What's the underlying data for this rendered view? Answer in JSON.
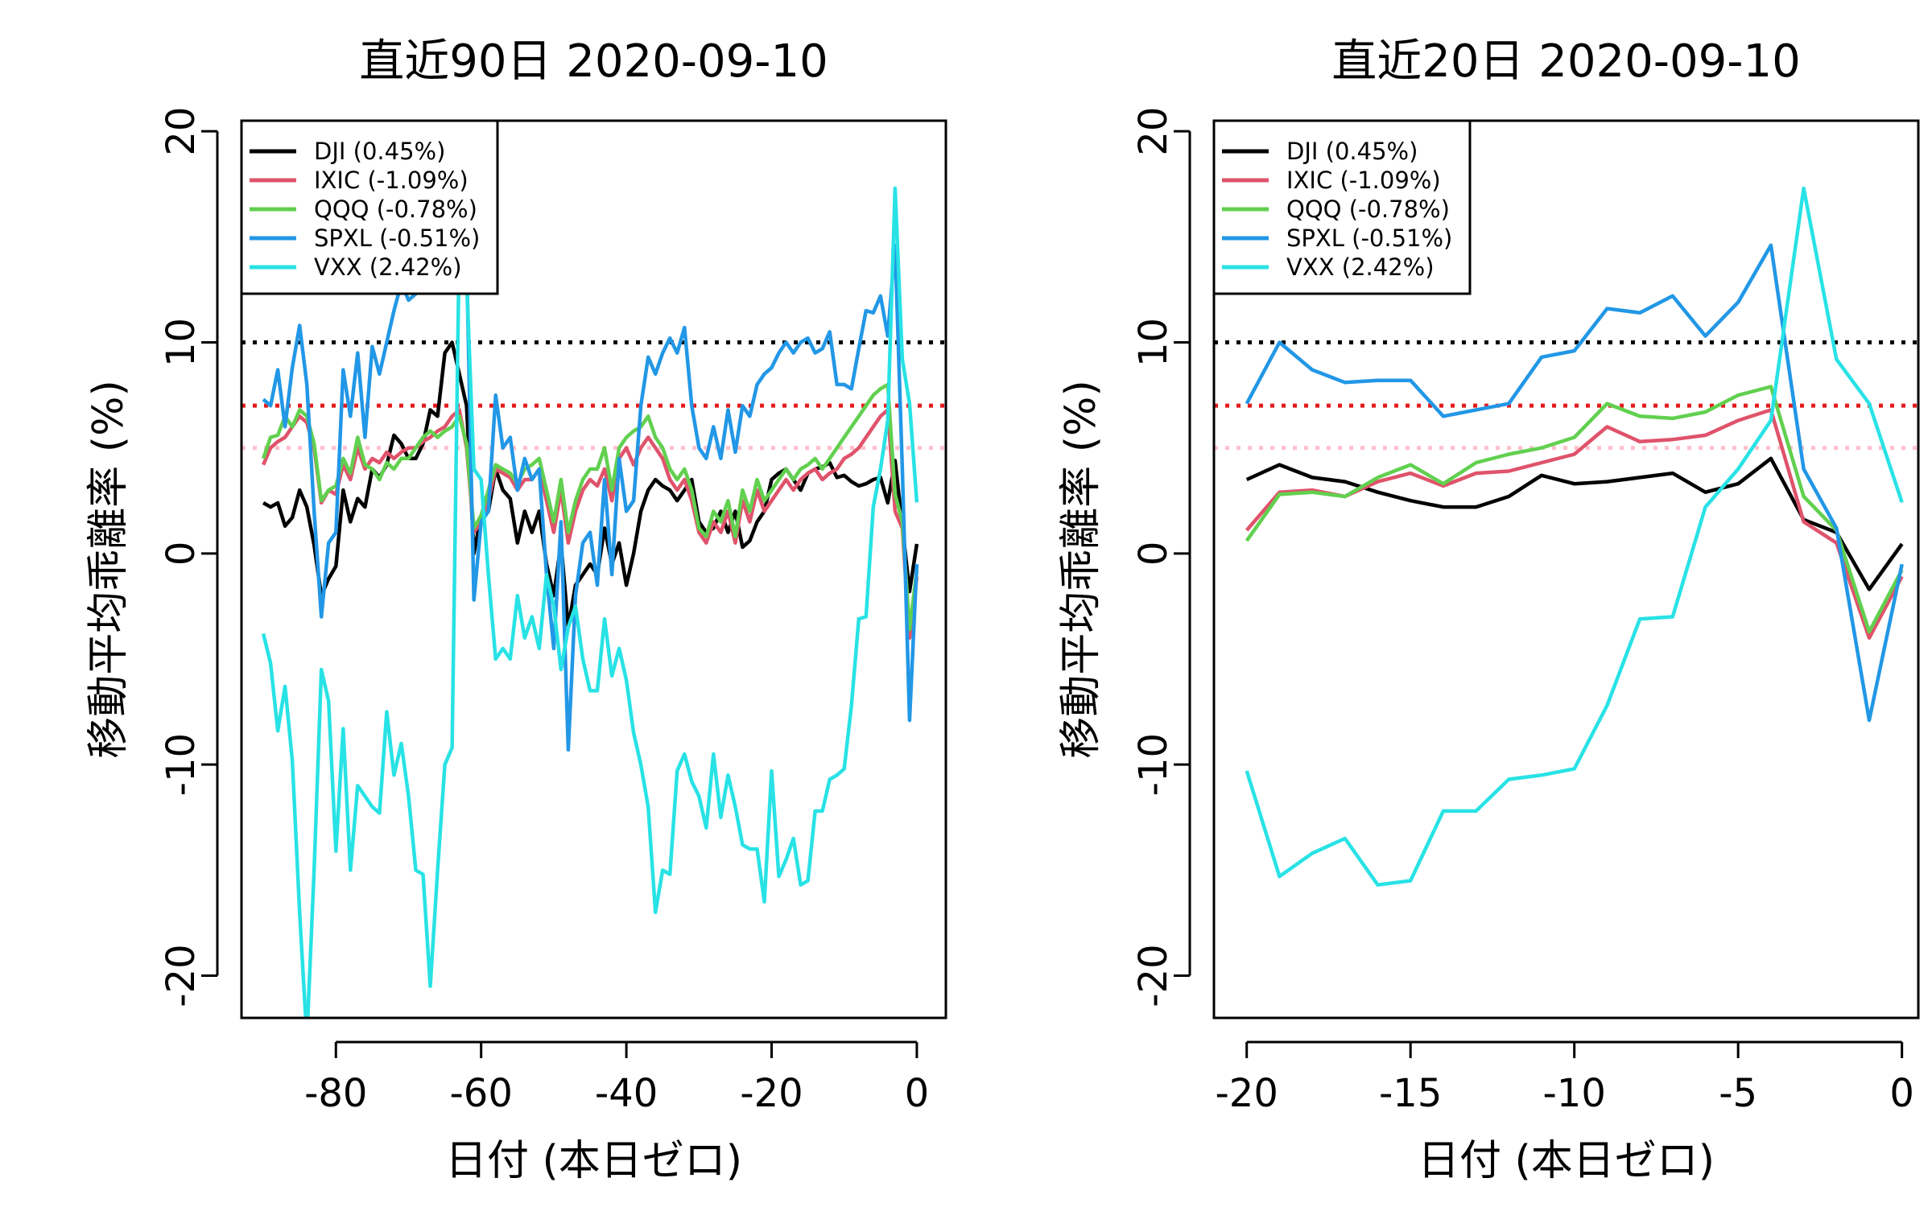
{
  "chart_data": [
    {
      "type": "line",
      "title": "直近90日  2020-09-10",
      "xlabel": "日付 (本日ゼロ)",
      "ylabel": "移動平均乖離率 (%)",
      "xlim": [
        -93,
        4
      ],
      "ylim": [
        -22,
        20.5
      ],
      "xticks": [
        -80,
        -60,
        -40,
        -20,
        0
      ],
      "xtick_labels": [
        "-80",
        "-60",
        "-40",
        "-20",
        "0"
      ],
      "yticks": [
        -20,
        -10,
        0,
        10,
        20
      ],
      "ytick_labels": [
        "-20",
        "-10",
        "0",
        "10",
        "20"
      ],
      "legend_position": "top-left",
      "hlines": [
        {
          "y": 10,
          "color": "#000000"
        },
        {
          "y": 7,
          "color": "#e41a1c"
        },
        {
          "y": 5,
          "color": "#ffc0cb"
        }
      ],
      "x": [
        -90,
        -89,
        -88,
        -87,
        -86,
        -85,
        -84,
        -83,
        -82,
        -81,
        -80,
        -79,
        -78,
        -77,
        -76,
        -75,
        -74,
        -73,
        -72,
        -71,
        -70,
        -69,
        -68,
        -67,
        -66,
        -65,
        -64,
        -63,
        -62,
        -61,
        -60,
        -59,
        -58,
        -57,
        -56,
        -55,
        -54,
        -53,
        -52,
        -51,
        -50,
        -49,
        -48,
        -47,
        -46,
        -45,
        -44,
        -43,
        -42,
        -41,
        -40,
        -39,
        -38,
        -37,
        -36,
        -35,
        -34,
        -33,
        -32,
        -31,
        -30,
        -29,
        -28,
        -27,
        -26,
        -25,
        -24,
        -23,
        -22,
        -21,
        -20,
        -19,
        -18,
        -17,
        -16,
        -15,
        -14,
        -13,
        -12,
        -11,
        -10,
        -9,
        -8,
        -7,
        -6,
        -5,
        -4,
        -3,
        -2,
        -1,
        0
      ],
      "series": [
        {
          "name": "DJI (0.45%)",
          "color": "#000000",
          "values": [
            2.4,
            2.2,
            2.4,
            1.3,
            1.7,
            3.0,
            2.2,
            0.4,
            -2.0,
            -1.2,
            -0.6,
            3.0,
            1.5,
            2.6,
            2.2,
            4.0,
            3.6,
            4.2,
            5.6,
            5.2,
            4.5,
            4.5,
            5.2,
            6.8,
            6.5,
            9.5,
            10.0,
            8.5,
            7.0,
            0.0,
            1.8,
            2.0,
            4.0,
            3.0,
            2.6,
            0.5,
            2.0,
            1.0,
            2.0,
            -0.5,
            -2.0,
            0.5,
            -3.5,
            -1.5,
            -1.0,
            -0.5,
            -1.0,
            1.2,
            -0.5,
            0.5,
            -1.5,
            0.0,
            2.0,
            3.0,
            3.5,
            3.2,
            3.0,
            2.5,
            3.0,
            3.5,
            1.5,
            1.0,
            1.2,
            2.0,
            1.0,
            2.0,
            0.3,
            0.6,
            1.5,
            2.0,
            3.5,
            3.8,
            4.0,
            3.5,
            3.0,
            3.8,
            4.0,
            4.1,
            4.3,
            3.6,
            3.7,
            3.4,
            3.2,
            3.3,
            3.5,
            3.6,
            2.4,
            4.4,
            1.3,
            -1.8,
            0.45
          ]
        },
        {
          "name": "IXIC (-1.09%)",
          "color": "#df536b",
          "values": [
            4.2,
            5.0,
            5.3,
            5.5,
            6.0,
            6.5,
            6.2,
            5.0,
            2.4,
            3.0,
            2.8,
            4.2,
            3.5,
            5.0,
            4.0,
            4.5,
            4.3,
            4.8,
            4.5,
            4.8,
            5.0,
            5.0,
            5.3,
            5.5,
            5.8,
            6.0,
            6.5,
            6.8,
            5.0,
            1.0,
            1.5,
            2.5,
            4.0,
            3.8,
            3.6,
            3.0,
            3.5,
            3.5,
            4.0,
            2.5,
            1.0,
            3.0,
            0.5,
            2.0,
            3.0,
            3.5,
            3.2,
            4.0,
            2.5,
            4.5,
            5.0,
            4.2,
            5.0,
            5.5,
            5.0,
            4.5,
            3.5,
            3.0,
            3.5,
            2.5,
            1.0,
            0.5,
            1.5,
            1.0,
            2.0,
            0.5,
            2.5,
            1.5,
            3.0,
            2.0,
            2.5,
            3.0,
            3.5,
            3.0,
            3.5,
            3.8,
            4.0,
            3.5,
            3.8,
            4.0,
            4.5,
            4.7,
            5.0,
            5.5,
            6.0,
            6.5,
            6.8,
            2.0,
            1.2,
            -4.0,
            -1.09
          ]
        },
        {
          "name": "QQQ (-0.78%)",
          "color": "#61d04f",
          "values": [
            4.5,
            5.5,
            5.6,
            6.5,
            6.0,
            6.8,
            6.5,
            5.2,
            2.5,
            3.0,
            3.2,
            4.5,
            3.8,
            5.5,
            4.2,
            4.0,
            3.5,
            4.3,
            4.0,
            4.5,
            4.5,
            5.0,
            5.5,
            5.8,
            5.5,
            5.8,
            6.0,
            6.5,
            5.2,
            1.2,
            1.8,
            3.0,
            4.2,
            4.0,
            3.8,
            3.3,
            4.0,
            4.2,
            4.5,
            3.0,
            1.5,
            3.5,
            1.0,
            2.5,
            3.5,
            4.0,
            4.0,
            5.0,
            3.0,
            5.0,
            5.5,
            5.8,
            6.0,
            6.5,
            5.5,
            5.0,
            4.0,
            3.5,
            4.0,
            3.0,
            1.2,
            0.8,
            2.0,
            1.5,
            2.5,
            0.8,
            3.0,
            2.0,
            3.5,
            2.5,
            3.0,
            3.5,
            4.0,
            3.5,
            4.0,
            4.2,
            4.5,
            4.0,
            4.5,
            5.0,
            5.5,
            6.0,
            6.5,
            7.0,
            7.5,
            7.8,
            8.0,
            2.8,
            1.5,
            -3.6,
            -0.78
          ]
        },
        {
          "name": "SPXL (-0.51%)",
          "color": "#2297e6",
          "values": [
            7.3,
            7.0,
            8.7,
            6.0,
            8.8,
            10.8,
            8.0,
            2.0,
            -3.0,
            0.5,
            1.0,
            8.7,
            6.5,
            9.5,
            5.5,
            9.8,
            8.5,
            10.0,
            11.5,
            12.8,
            12.0,
            12.3,
            12.8,
            14.0,
            13.5,
            14.8,
            15.0,
            17.5,
            14.0,
            -2.2,
            1.5,
            2.0,
            7.5,
            5.0,
            5.5,
            3.0,
            4.5,
            3.5,
            4.0,
            -1.0,
            -4.5,
            1.5,
            -9.3,
            -2.0,
            0.5,
            1.0,
            -1.5,
            3.5,
            -1.0,
            4.5,
            2.0,
            2.5,
            7.0,
            9.3,
            8.5,
            9.5,
            10.2,
            9.5,
            10.7,
            7.0,
            5.0,
            4.5,
            6.0,
            4.5,
            6.8,
            4.8,
            7.0,
            6.5,
            8.0,
            8.5,
            8.8,
            9.5,
            10.0,
            9.5,
            10.0,
            10.2,
            9.5,
            9.7,
            10.5,
            8.0,
            8.0,
            7.8,
            9.7,
            11.5,
            11.4,
            12.2,
            10.3,
            14.6,
            4.0,
            -7.9,
            -0.51
          ]
        },
        {
          "name": "VXX (2.42%)",
          "color": "#28e2e5",
          "values": [
            -3.8,
            -5.2,
            -8.4,
            -6.3,
            -9.8,
            -17.0,
            -23.0,
            -15.0,
            -5.5,
            -7.0,
            -14.1,
            -8.3,
            -15.0,
            -11.0,
            -11.5,
            -12.0,
            -12.3,
            -7.5,
            -10.5,
            -9.0,
            -11.5,
            -15.0,
            -15.2,
            -20.5,
            -15.0,
            -10.0,
            -9.2,
            15.0,
            13.0,
            4.0,
            3.5,
            -1.0,
            -5.0,
            -4.5,
            -5.0,
            -2.0,
            -4.0,
            -3.0,
            -4.5,
            -1.0,
            -2.5,
            -5.5,
            -3.5,
            -2.5,
            -5.0,
            -6.5,
            -6.5,
            -3.1,
            -5.8,
            -4.5,
            -6.0,
            -8.5,
            -10.0,
            -12.0,
            -17.0,
            -15.0,
            -15.2,
            -10.3,
            -9.5,
            -10.8,
            -11.5,
            -13.0,
            -9.5,
            -12.5,
            -10.5,
            -12.0,
            -13.8,
            -14.0,
            -14.0,
            -16.5,
            -10.3,
            -15.3,
            -14.5,
            -13.5,
            -15.7,
            -15.5,
            -12.2,
            -12.2,
            -10.7,
            -10.5,
            -10.2,
            -7.2,
            -3.1,
            -3.0,
            2.2,
            4.0,
            6.3,
            17.3,
            9.2,
            7.1,
            2.42
          ]
        }
      ]
    },
    {
      "type": "line",
      "title": "直近20日  2020-09-10",
      "xlabel": "日付 (本日ゼロ)",
      "ylabel": "移動平均乖離率 (%)",
      "xlim": [
        -21,
        0.5
      ],
      "ylim": [
        -22,
        20.5
      ],
      "xticks": [
        -20,
        -15,
        -10,
        -5,
        0
      ],
      "xtick_labels": [
        "-20",
        "-15",
        "-10",
        "-5",
        "0"
      ],
      "yticks": [
        -20,
        -10,
        0,
        10,
        20
      ],
      "ytick_labels": [
        "-20",
        "-10",
        "0",
        "10",
        "20"
      ],
      "legend_position": "top-left",
      "hlines": [
        {
          "y": 10,
          "color": "#000000"
        },
        {
          "y": 7,
          "color": "#e41a1c"
        },
        {
          "y": 5,
          "color": "#ffc0cb"
        }
      ],
      "x": [
        -20,
        -19,
        -18,
        -17,
        -16,
        -15,
        -14,
        -13,
        -12,
        -11,
        -10,
        -9,
        -8,
        -7,
        -6,
        -5,
        -4,
        -3,
        -2,
        -1,
        0
      ],
      "series": [
        {
          "name": "DJI (0.45%)",
          "color": "#000000",
          "values": [
            3.5,
            4.2,
            3.6,
            3.4,
            2.9,
            2.5,
            2.2,
            2.2,
            2.7,
            3.7,
            3.3,
            3.4,
            3.6,
            3.8,
            2.9,
            3.3,
            4.5,
            1.6,
            1.0,
            -1.7,
            0.45
          ]
        },
        {
          "name": "IXIC (-1.09%)",
          "color": "#df536b",
          "values": [
            1.1,
            2.9,
            3.0,
            2.7,
            3.4,
            3.8,
            3.2,
            3.8,
            3.9,
            4.3,
            4.7,
            6.0,
            5.3,
            5.4,
            5.6,
            6.3,
            6.8,
            1.5,
            0.5,
            -4.0,
            -1.09
          ]
        },
        {
          "name": "QQQ (-0.78%)",
          "color": "#61d04f",
          "values": [
            0.6,
            2.8,
            2.9,
            2.7,
            3.6,
            4.2,
            3.3,
            4.3,
            4.7,
            5.0,
            5.5,
            7.1,
            6.5,
            6.4,
            6.7,
            7.5,
            7.9,
            2.7,
            1.1,
            -3.7,
            -0.78
          ]
        },
        {
          "name": "SPXL (-0.51%)",
          "color": "#2297e6",
          "values": [
            7.1,
            10.0,
            8.7,
            8.1,
            8.2,
            8.2,
            6.5,
            6.8,
            7.1,
            9.3,
            9.6,
            11.6,
            11.4,
            12.2,
            10.3,
            11.9,
            14.6,
            4.0,
            1.2,
            -7.9,
            -0.51
          ]
        },
        {
          "name": "VXX (2.42%)",
          "color": "#28e2e5",
          "values": [
            -10.3,
            -15.3,
            -14.2,
            -13.5,
            -15.7,
            -15.5,
            -12.2,
            -12.2,
            -10.7,
            -10.5,
            -10.2,
            -7.2,
            -3.1,
            -3.0,
            2.2,
            4.0,
            6.3,
            17.3,
            9.2,
            7.1,
            2.42
          ]
        }
      ]
    }
  ]
}
